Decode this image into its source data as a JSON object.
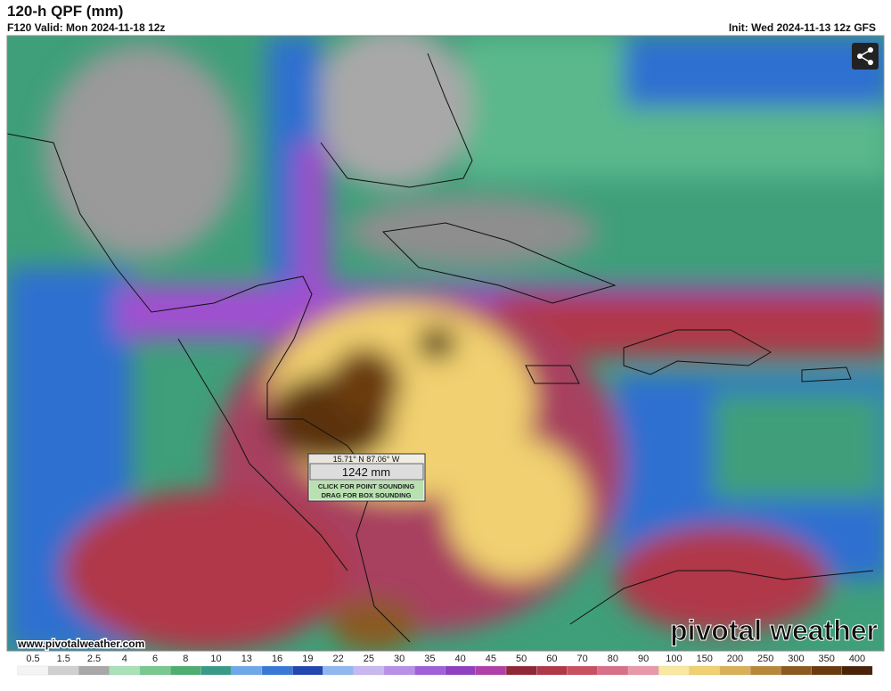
{
  "header": {
    "title": "120-h QPF (mm)",
    "valid": "F120 Valid: Mon 2024-11-18 12z",
    "init": "Init: Wed 2024-11-13 12z GFS"
  },
  "tooltip": {
    "coords": "15.71° N 87.06° W",
    "value": "1242 mm",
    "hint1": "CLICK FOR POINT SOUNDING",
    "hint2": "DRAG FOR BOX SOUNDING"
  },
  "footer": {
    "website": "www.pivotalweather.com",
    "logo": "pivotal weather"
  },
  "legend": {
    "labels": [
      0.5,
      1.5,
      2.5,
      4,
      6,
      8,
      10,
      13,
      16,
      19,
      22,
      25,
      30,
      35,
      40,
      45,
      50,
      60,
      70,
      80,
      90,
      100,
      150,
      200,
      250,
      300,
      350,
      400
    ],
    "colors": [
      "#f4f4f4",
      "#d0d0d0",
      "#a8a8a8",
      "#a8e0b8",
      "#78c890",
      "#4fae72",
      "#3a9a8a",
      "#6fa8e8",
      "#3a78d8",
      "#2048b0",
      "#90b8f0",
      "#c8b8f0",
      "#b890e8",
      "#a060d8",
      "#9040c0",
      "#b040a8",
      "#902838",
      "#b03848",
      "#c85060",
      "#d87088",
      "#e898a8",
      "#f8e8a0",
      "#f0d070",
      "#d8b058",
      "#b88838",
      "#8a5a20",
      "#6a3a10",
      "#4a2408"
    ]
  }
}
